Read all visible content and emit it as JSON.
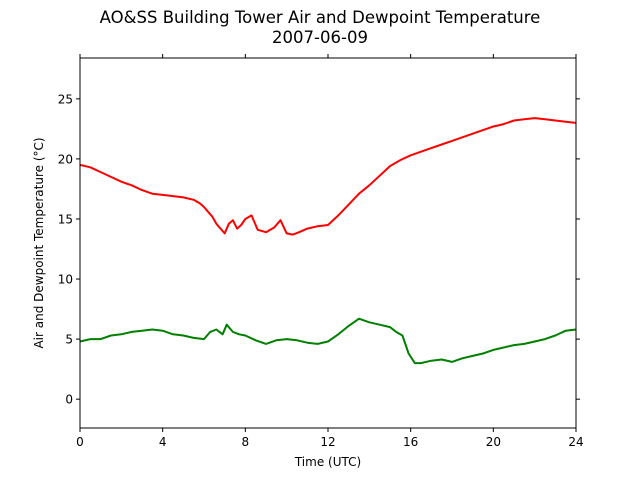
{
  "chart_data": {
    "type": "line",
    "title": "AO&SS Building Tower Air and Dewpoint Temperature",
    "subtitle": "2007-06-09",
    "xlabel": "Time (UTC)",
    "ylabel": "Air and Dewpoint Temperature (°C)",
    "xlim": [
      0,
      24
    ],
    "ylim": [
      -2.4,
      28.4
    ],
    "xticks": [
      0,
      4,
      8,
      12,
      16,
      20,
      24
    ],
    "yticks": [
      0,
      5,
      10,
      15,
      20,
      25
    ],
    "grid": false,
    "series": [
      {
        "color": "#ff0000",
        "x": [
          0,
          0.5,
          1,
          1.5,
          2,
          2.5,
          3,
          3.5,
          4,
          4.5,
          5,
          5.5,
          5.8,
          6.0,
          6.2,
          6.4,
          6.6,
          6.8,
          7.0,
          7.2,
          7.4,
          7.6,
          7.8,
          8.0,
          8.3,
          8.6,
          9.0,
          9.4,
          9.7,
          10.0,
          10.3,
          10.6,
          11.0,
          11.5,
          12.0,
          12.5,
          13.0,
          13.5,
          14.0,
          14.5,
          15.0,
          15.5,
          16.0,
          16.5,
          17.0,
          17.5,
          18.0,
          18.5,
          19.0,
          19.5,
          20.0,
          20.5,
          21.0,
          21.5,
          22.0,
          22.5,
          23.0,
          23.5,
          24.0
        ],
        "values": [
          19.5,
          19.3,
          18.9,
          18.5,
          18.1,
          17.8,
          17.4,
          17.1,
          17.0,
          16.9,
          16.8,
          16.6,
          16.3,
          16.0,
          15.6,
          15.2,
          14.6,
          14.2,
          13.8,
          14.6,
          14.9,
          14.2,
          14.5,
          15.0,
          15.3,
          14.1,
          13.9,
          14.3,
          14.9,
          13.8,
          13.7,
          13.9,
          14.2,
          14.4,
          14.5,
          15.3,
          16.2,
          17.1,
          17.8,
          18.6,
          19.4,
          19.9,
          20.3,
          20.6,
          20.9,
          21.2,
          21.5,
          21.8,
          22.1,
          22.4,
          22.7,
          22.9,
          23.2,
          23.3,
          23.4,
          23.3,
          23.2,
          23.1,
          23.0
        ]
      },
      {
        "color": "#008000",
        "x": [
          0,
          0.5,
          1,
          1.5,
          2,
          2.5,
          3,
          3.5,
          4,
          4.5,
          5,
          5.5,
          6.0,
          6.3,
          6.6,
          6.9,
          7.1,
          7.4,
          7.7,
          8.0,
          8.5,
          9.0,
          9.5,
          10.0,
          10.5,
          11.0,
          11.5,
          12.0,
          12.5,
          13.0,
          13.5,
          14.0,
          14.5,
          15.0,
          15.3,
          15.6,
          15.9,
          16.2,
          16.5,
          17.0,
          17.5,
          18.0,
          18.5,
          19.0,
          19.5,
          20.0,
          20.5,
          21.0,
          21.5,
          22.0,
          22.5,
          23.0,
          23.5,
          24.0
        ],
        "values": [
          4.8,
          5.0,
          5.0,
          5.3,
          5.4,
          5.6,
          5.7,
          5.8,
          5.7,
          5.4,
          5.3,
          5.1,
          5.0,
          5.6,
          5.8,
          5.4,
          6.2,
          5.6,
          5.4,
          5.3,
          4.9,
          4.6,
          4.9,
          5.0,
          4.9,
          4.7,
          4.6,
          4.8,
          5.4,
          6.1,
          6.7,
          6.4,
          6.2,
          6.0,
          5.6,
          5.3,
          3.8,
          3.0,
          3.0,
          3.2,
          3.3,
          3.1,
          3.4,
          3.6,
          3.8,
          4.1,
          4.3,
          4.5,
          4.6,
          4.8,
          5.0,
          5.3,
          5.7,
          5.8
        ]
      }
    ]
  }
}
